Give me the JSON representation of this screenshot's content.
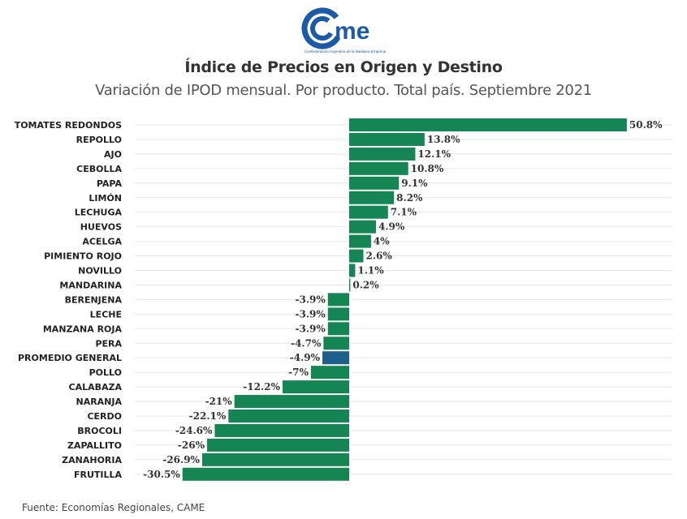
{
  "logo": {
    "name": "came-logo",
    "text": "came",
    "tagline": "Confederación Argentina de la Mediana Empresa",
    "color": "#1a5aa6"
  },
  "header": {
    "title": "Índice de Precios en Origen y Destino",
    "subtitle": "Variación de IPOD mensual. Por producto. Total país. Septiembre 2021"
  },
  "footer": {
    "source": "Fuente: Economías Regionales, CAME"
  },
  "colors": {
    "bar": "#148553",
    "highlight": "#1f5f8b",
    "grid": "#e6e6e6"
  },
  "chart_data": {
    "type": "bar",
    "orientation": "horizontal",
    "title": "Índice de Precios en Origen y Destino",
    "subtitle": "Variación de IPOD mensual. Por producto. Total país. Septiembre 2021",
    "xlabel": "",
    "ylabel": "",
    "unit": "%",
    "xlim": [
      -30.5,
      50.8
    ],
    "grid": true,
    "highlight_category": "PROMEDIO GENERAL",
    "categories": [
      "TOMATES REDONDOS",
      "REPOLLO",
      "AJO",
      "CEBOLLA",
      "PAPA",
      "LIMÓN",
      "LECHUGA",
      "HUEVOS",
      "ACELGA",
      "PIMIENTO ROJO",
      "NOVILLO",
      "MANDARINA",
      "BERENJENA",
      "LECHE",
      "MANZANA ROJA",
      "PERA",
      "PROMEDIO GENERAL",
      "POLLO",
      "CALABAZA",
      "NARANJA",
      "CERDO",
      "BROCOLI",
      "ZAPALLITO",
      "ZANAHORIA",
      "FRUTILLA"
    ],
    "values": [
      50.8,
      13.8,
      12.1,
      10.8,
      9.1,
      8.2,
      7.1,
      4.9,
      4,
      2.6,
      1.1,
      0.2,
      -3.9,
      -3.9,
      -3.9,
      -4.7,
      -4.9,
      -7,
      -12.2,
      -21,
      -22.1,
      -24.6,
      -26,
      -26.9,
      -30.5
    ],
    "labels": [
      "50.8%",
      "13.8%",
      "12.1%",
      "10.8%",
      "9.1%",
      "8.2%",
      "7.1%",
      "4.9%",
      "4%",
      "2.6%",
      "1.1%",
      "0.2%",
      "-3.9%",
      "-3.9%",
      "-3.9%",
      "-4.7%",
      "-4.9%",
      "-7%",
      "-12.2%",
      "-21%",
      "-22.1%",
      "-24.6%",
      "-26%",
      "-26.9%",
      "-30.5%"
    ]
  }
}
